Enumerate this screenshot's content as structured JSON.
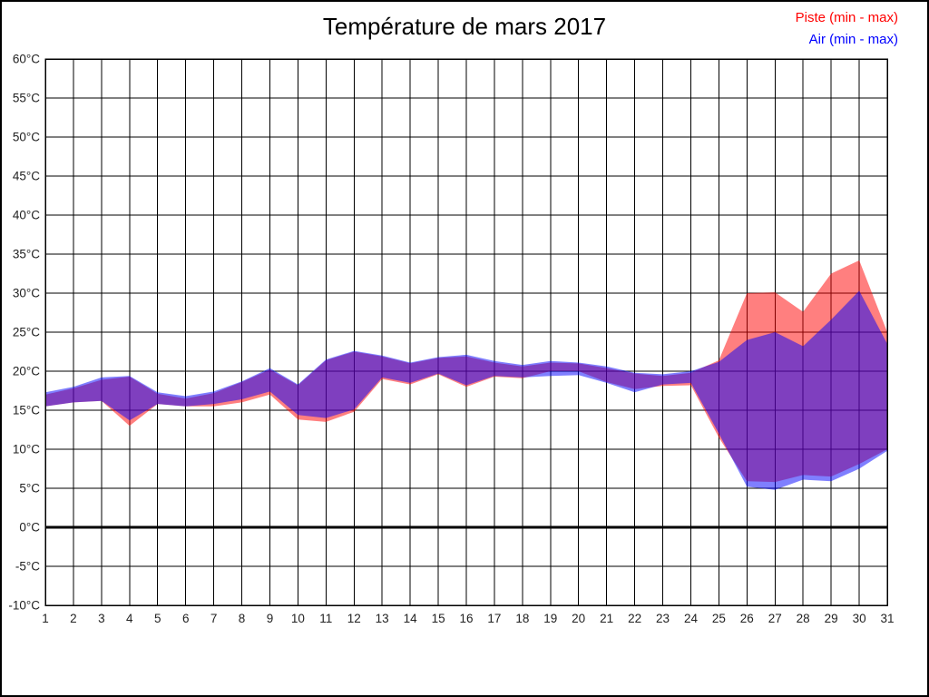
{
  "title": "Température de mars 2017",
  "legend": [
    {
      "label": "Piste (min - max)",
      "color": "#ff0000"
    },
    {
      "label": "Air (min - max)",
      "color": "#0000ff"
    }
  ],
  "chart_data": {
    "type": "area",
    "title": "Température de mars 2017",
    "xlabel": "",
    "ylabel": "°C",
    "x": [
      1,
      2,
      3,
      4,
      5,
      6,
      7,
      8,
      9,
      10,
      11,
      12,
      13,
      14,
      15,
      16,
      17,
      18,
      19,
      20,
      21,
      22,
      23,
      24,
      25,
      26,
      27,
      28,
      29,
      30,
      31
    ],
    "xticks": [
      "1",
      "2",
      "3",
      "4",
      "5",
      "6",
      "7",
      "8",
      "9",
      "10",
      "11",
      "12",
      "13",
      "14",
      "15",
      "16",
      "17",
      "18",
      "19",
      "20",
      "21",
      "22",
      "23",
      "24",
      "25",
      "26",
      "27",
      "28",
      "29",
      "30",
      "31"
    ],
    "ylim": [
      -10,
      60
    ],
    "ytick_step": 5,
    "yticks": [
      "60°C",
      "55°C",
      "50°C",
      "45°C",
      "40°C",
      "35°C",
      "30°C",
      "25°C",
      "20°C",
      "15°C",
      "10°C",
      "5°C",
      "0°C",
      "-5°C",
      "-10°C"
    ],
    "ytick_values": [
      60,
      55,
      50,
      45,
      40,
      35,
      30,
      25,
      20,
      15,
      10,
      5,
      0,
      -5,
      -10
    ],
    "grid": true,
    "zero_line_bold": true,
    "legend_position": "top-right",
    "series": [
      {
        "name": "Piste (min - max)",
        "fill": "rgba(255,0,0,0.5)",
        "min": [
          15.5,
          16.0,
          16.2,
          13.0,
          15.8,
          15.5,
          15.5,
          16.0,
          17.0,
          13.8,
          13.5,
          14.8,
          19.0,
          18.3,
          19.6,
          18.0,
          19.3,
          19.1,
          20.0,
          20.0,
          18.6,
          17.7,
          18.1,
          18.2,
          11.5,
          5.9,
          5.8,
          6.7,
          6.5,
          8.1,
          10.0
        ],
        "max": [
          17.0,
          17.8,
          18.9,
          19.3,
          17.1,
          16.5,
          17.2,
          18.6,
          20.2,
          18.2,
          21.4,
          22.5,
          21.9,
          21.0,
          21.7,
          21.9,
          21.1,
          20.6,
          21.1,
          21.0,
          20.4,
          19.7,
          19.4,
          19.8,
          21.4,
          30.0,
          30.1,
          27.6,
          32.5,
          34.2,
          25.0
        ]
      },
      {
        "name": "Air (min - max)",
        "fill": "rgba(0,0,255,0.5)",
        "min": [
          15.5,
          16.0,
          16.2,
          13.7,
          15.8,
          15.5,
          15.8,
          16.4,
          17.4,
          14.4,
          14.0,
          15.1,
          19.2,
          18.5,
          19.7,
          18.2,
          19.4,
          19.2,
          19.4,
          19.5,
          18.5,
          17.3,
          18.3,
          18.5,
          12.0,
          5.2,
          4.8,
          6.1,
          5.9,
          7.5,
          9.8
        ],
        "max": [
          17.3,
          18.0,
          19.2,
          19.4,
          17.3,
          16.8,
          17.4,
          18.7,
          20.4,
          18.3,
          21.5,
          22.6,
          22.0,
          21.1,
          21.8,
          22.1,
          21.3,
          20.8,
          21.3,
          21.1,
          20.6,
          19.8,
          19.6,
          20.0,
          21.2,
          24.0,
          25.0,
          23.2,
          26.6,
          30.3,
          23.5
        ]
      }
    ]
  }
}
